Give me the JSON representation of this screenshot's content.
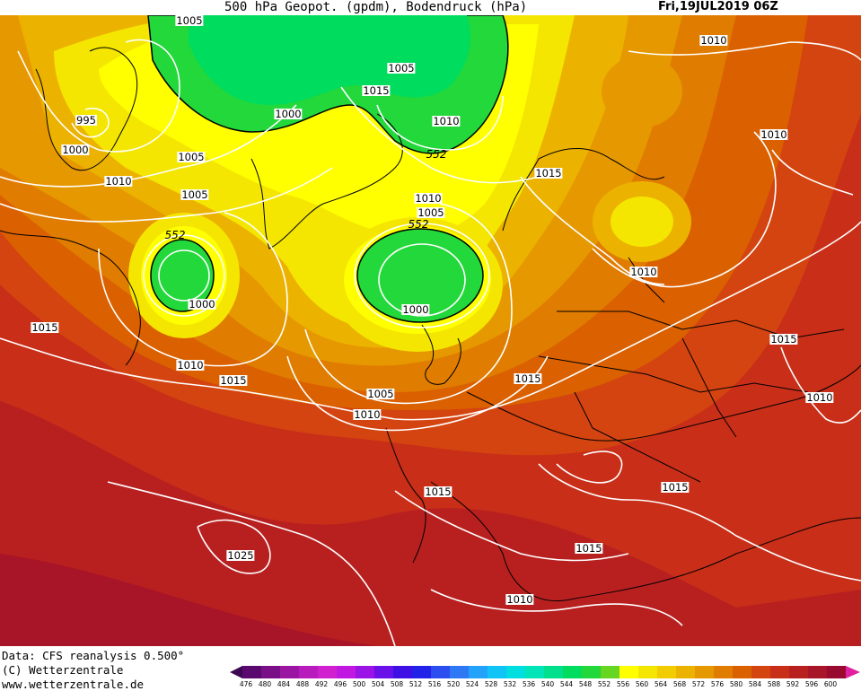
{
  "header": {
    "title": "500 hPa Geopot. (gpdm), Bodendruck (hPa)",
    "date": "Fri,19JUL2019 06Z"
  },
  "footer": {
    "data_source": "Data: CFS reanalysis 0.500°",
    "copyright": "(C) Wetterzentrale",
    "website": "www.wetterzentrale.de"
  },
  "colorbar": {
    "ticks": [
      "476",
      "480",
      "484",
      "488",
      "492",
      "496",
      "500",
      "504",
      "508",
      "512",
      "516",
      "520",
      "524",
      "528",
      "532",
      "536",
      "540",
      "544",
      "548",
      "552",
      "556",
      "560",
      "564",
      "568",
      "572",
      "576",
      "580",
      "584",
      "588",
      "592",
      "596",
      "600"
    ],
    "colors": [
      "#5a0a6e",
      "#7a1088",
      "#9a16a2",
      "#b81cbc",
      "#d020d0",
      "#c018e0",
      "#9a14e6",
      "#6a10e8",
      "#3e10e6",
      "#2222e8",
      "#2c4ef0",
      "#2e78f4",
      "#22a2f8",
      "#10c4f6",
      "#00dee0",
      "#00e4b8",
      "#00e08c",
      "#00dc5e",
      "#22d83a",
      "#66d622",
      "#ffff00",
      "#f4e600",
      "#f0cc00",
      "#ecb200",
      "#e69800",
      "#e07c00",
      "#da6000",
      "#d44410",
      "#c82e18",
      "#b82020",
      "#a81428",
      "#980a30"
    ],
    "arrow_left_color": "#3c0854",
    "arrow_right_color": "#e020a0"
  },
  "map": {
    "isobar_labels": [
      "1005",
      "995",
      "1000",
      "1005",
      "1010",
      "1005",
      "1000",
      "1005",
      "1015",
      "1010",
      "1005",
      "1010",
      "1000",
      "1000",
      "1010",
      "1015",
      "1015",
      "1010",
      "1015",
      "1005",
      "1010",
      "1015",
      "1010",
      "1015",
      "1015",
      "1025",
      "1015",
      "1010",
      "1015",
      "1010",
      "1010"
    ],
    "height_labels": [
      "552",
      "552",
      "552"
    ],
    "field_colors": {
      "c600": "#a81428",
      "c592": "#b82020",
      "c584": "#c82e18",
      "c576": "#d44410",
      "c572": "#da6000",
      "c568": "#e07c00",
      "c564": "#e69800",
      "c560": "#ecb200",
      "c556": "#f4e600",
      "c552": "#ffff00",
      "c548": "#66d622",
      "c544": "#22d83a",
      "isobar": "#ffffff",
      "coast": "#000000"
    }
  }
}
